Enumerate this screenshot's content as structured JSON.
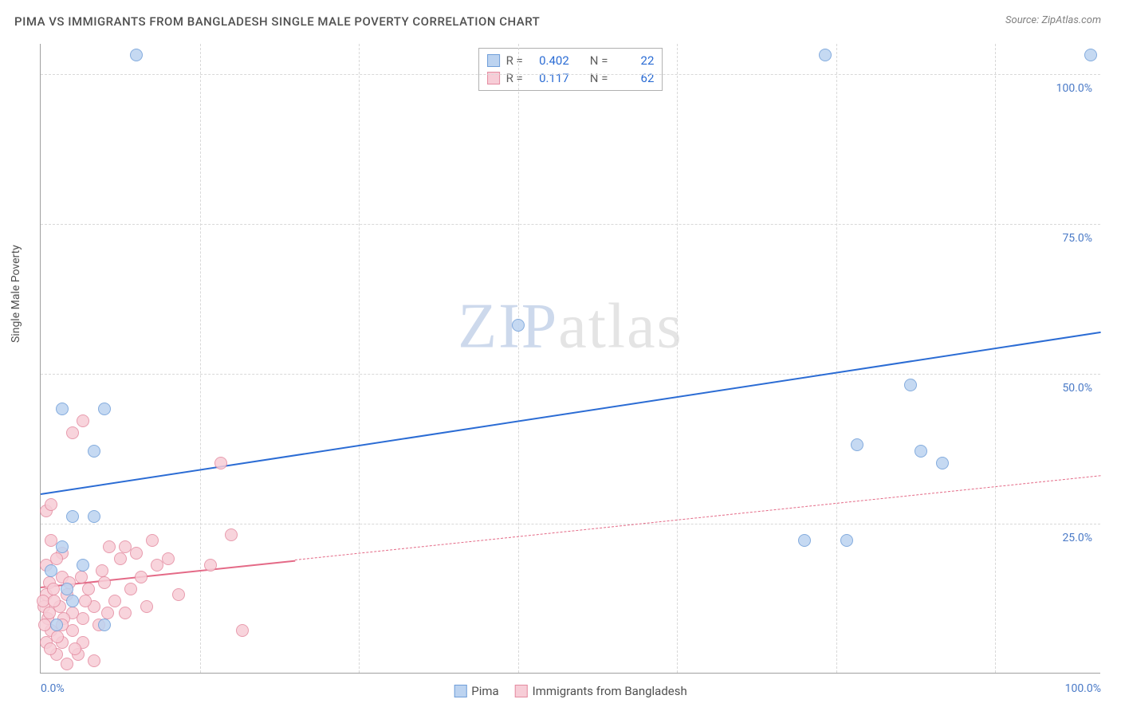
{
  "title": "PIMA VS IMMIGRANTS FROM BANGLADESH SINGLE MALE POVERTY CORRELATION CHART",
  "source_prefix": "Source: ",
  "source": "ZipAtlas.com",
  "y_axis_label": "Single Male Poverty",
  "watermark": {
    "part1": "ZIP",
    "part2": "atlas"
  },
  "chart": {
    "type": "scatter",
    "xlim": [
      0,
      100
    ],
    "ylim": [
      0,
      105
    ],
    "x_ticks": [
      {
        "value": 0,
        "label": "0.0%",
        "align": "left"
      },
      {
        "value": 100,
        "label": "100.0%",
        "align": "right"
      }
    ],
    "y_ticks": [
      {
        "value": 25,
        "label": "25.0%"
      },
      {
        "value": 50,
        "label": "50.0%"
      },
      {
        "value": 75,
        "label": "75.0%"
      },
      {
        "value": 100,
        "label": "100.0%"
      }
    ],
    "v_gridlines": [
      15,
      30,
      45,
      60,
      75,
      90
    ],
    "background_color": "#ffffff",
    "grid_color": "#d8d8d8",
    "axis_color": "#a0a0a0",
    "tick_label_color": "#4a7ac7",
    "marker_radius": 8,
    "marker_stroke_width": 1.2
  },
  "series": [
    {
      "id": "pima",
      "label": "Pima",
      "fill_color": "#bcd3f0",
      "stroke_color": "#6f9ed9",
      "trend_color": "#2b6cd4",
      "trend_width": 2.5,
      "trend_dash": "solid",
      "R": "0.402",
      "N": "22",
      "trend": {
        "x1": 0,
        "y1": 30,
        "x2": 100,
        "y2": 57
      },
      "points": [
        {
          "x": 2,
          "y": 44
        },
        {
          "x": 6,
          "y": 44
        },
        {
          "x": 3,
          "y": 26
        },
        {
          "x": 5,
          "y": 26
        },
        {
          "x": 5,
          "y": 37
        },
        {
          "x": 2,
          "y": 21
        },
        {
          "x": 3,
          "y": 12
        },
        {
          "x": 1.5,
          "y": 8
        },
        {
          "x": 6,
          "y": 8
        },
        {
          "x": 9,
          "y": 103
        },
        {
          "x": 74,
          "y": 103
        },
        {
          "x": 99,
          "y": 103
        },
        {
          "x": 45,
          "y": 58
        },
        {
          "x": 82,
          "y": 48
        },
        {
          "x": 77,
          "y": 38
        },
        {
          "x": 83,
          "y": 37
        },
        {
          "x": 85,
          "y": 35
        },
        {
          "x": 72,
          "y": 22
        },
        {
          "x": 76,
          "y": 22
        },
        {
          "x": 1,
          "y": 17
        },
        {
          "x": 2.5,
          "y": 14
        },
        {
          "x": 4,
          "y": 18
        }
      ]
    },
    {
      "id": "bangladesh",
      "label": "Immigrants from Bangladesh",
      "fill_color": "#f7cdd7",
      "stroke_color": "#e48ba0",
      "trend_color": "#e46a87",
      "trend_width": 2,
      "trend_dash": "dashed",
      "R": "0.117",
      "N": "62",
      "trend_solid_until_x": 24,
      "trend": {
        "x1": 0,
        "y1": 14.5,
        "x2": 100,
        "y2": 33
      },
      "points": [
        {
          "x": 0.5,
          "y": 27
        },
        {
          "x": 1,
          "y": 28
        },
        {
          "x": 3,
          "y": 40
        },
        {
          "x": 4,
          "y": 42
        },
        {
          "x": 1,
          "y": 22
        },
        {
          "x": 2,
          "y": 20
        },
        {
          "x": 0.5,
          "y": 18
        },
        {
          "x": 1.5,
          "y": 19
        },
        {
          "x": 0.8,
          "y": 15
        },
        {
          "x": 2,
          "y": 16
        },
        {
          "x": 0.5,
          "y": 13
        },
        {
          "x": 1.2,
          "y": 14
        },
        {
          "x": 2.5,
          "y": 13
        },
        {
          "x": 0.3,
          "y": 11
        },
        {
          "x": 1.8,
          "y": 11
        },
        {
          "x": 3,
          "y": 10
        },
        {
          "x": 0.7,
          "y": 9
        },
        {
          "x": 2.2,
          "y": 9
        },
        {
          "x": 4,
          "y": 9
        },
        {
          "x": 1,
          "y": 7
        },
        {
          "x": 3,
          "y": 7
        },
        {
          "x": 0.5,
          "y": 5
        },
        {
          "x": 2,
          "y": 5
        },
        {
          "x": 4,
          "y": 5
        },
        {
          "x": 1.5,
          "y": 3
        },
        {
          "x": 3.5,
          "y": 3
        },
        {
          "x": 2.5,
          "y": 1.5
        },
        {
          "x": 5,
          "y": 2
        },
        {
          "x": 4.5,
          "y": 14
        },
        {
          "x": 5,
          "y": 11
        },
        {
          "x": 5.5,
          "y": 8
        },
        {
          "x": 6,
          "y": 15
        },
        {
          "x": 6.5,
          "y": 21
        },
        {
          "x": 7,
          "y": 12
        },
        {
          "x": 7.5,
          "y": 19
        },
        {
          "x": 8,
          "y": 21
        },
        {
          "x": 8,
          "y": 10
        },
        {
          "x": 8.5,
          "y": 14
        },
        {
          "x": 9,
          "y": 20
        },
        {
          "x": 9.5,
          "y": 16
        },
        {
          "x": 10,
          "y": 11
        },
        {
          "x": 10.5,
          "y": 22
        },
        {
          "x": 11,
          "y": 18
        },
        {
          "x": 12,
          "y": 19
        },
        {
          "x": 13,
          "y": 13
        },
        {
          "x": 16,
          "y": 18
        },
        {
          "x": 17,
          "y": 35
        },
        {
          "x": 18,
          "y": 23
        },
        {
          "x": 19,
          "y": 7
        },
        {
          "x": 0.2,
          "y": 12
        },
        {
          "x": 0.8,
          "y": 10
        },
        {
          "x": 1.3,
          "y": 12
        },
        {
          "x": 2.7,
          "y": 15
        },
        {
          "x": 3.8,
          "y": 16
        },
        {
          "x": 4.2,
          "y": 12
        },
        {
          "x": 5.8,
          "y": 17
        },
        {
          "x": 6.3,
          "y": 10
        },
        {
          "x": 2,
          "y": 8
        },
        {
          "x": 0.4,
          "y": 8
        },
        {
          "x": 1.6,
          "y": 6
        },
        {
          "x": 3.2,
          "y": 4
        },
        {
          "x": 0.9,
          "y": 4
        }
      ]
    }
  ],
  "stats_labels": {
    "R": "R =",
    "N": "N ="
  },
  "legend": {
    "swatch_border_blue": "#6f9ed9",
    "swatch_fill_blue": "#bcd3f0",
    "swatch_border_pink": "#e48ba0",
    "swatch_fill_pink": "#f7cdd7"
  }
}
